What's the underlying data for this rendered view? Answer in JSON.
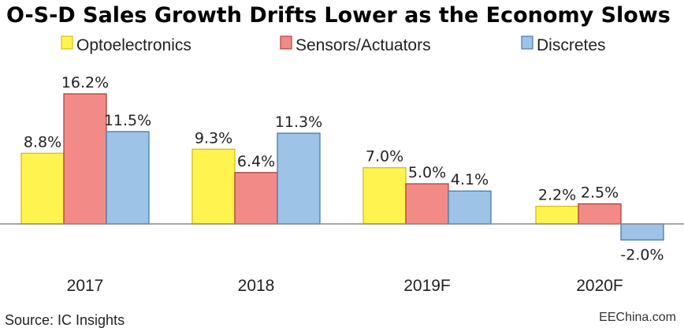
{
  "chart_data": {
    "type": "bar",
    "title": "O-S-D Sales Growth Drifts Lower as the Economy Slows",
    "categories": [
      "2017",
      "2018",
      "2019F",
      "2020F"
    ],
    "series": [
      {
        "name": "Optoelectronics",
        "values": [
          8.8,
          9.3,
          7.0,
          2.2
        ],
        "labels": [
          "8.8%",
          "9.3%",
          "7.0%",
          "2.2%"
        ],
        "color": "#FFF44F",
        "color_dark": "#D4BE14"
      },
      {
        "name": "Sensors/Actuators",
        "values": [
          16.2,
          6.4,
          5.0,
          2.5
        ],
        "labels": [
          "16.2%",
          "6.4%",
          "5.0%",
          "2.5%"
        ],
        "color": "#F28B87",
        "color_dark": "#B0413C"
      },
      {
        "name": "Discretes",
        "values": [
          11.5,
          11.3,
          4.1,
          -2.0
        ],
        "labels": [
          "11.5%",
          "11.3%",
          "4.1%",
          "-2.0%"
        ],
        "color": "#9DC3E6",
        "color_dark": "#4A7BB0"
      }
    ],
    "legend_position": "top",
    "grid": false,
    "xlabel": "",
    "ylabel": "",
    "ylim": [
      -2.5,
      16.2
    ],
    "source": "Source: IC Insights",
    "watermark": "EEChina.com"
  }
}
